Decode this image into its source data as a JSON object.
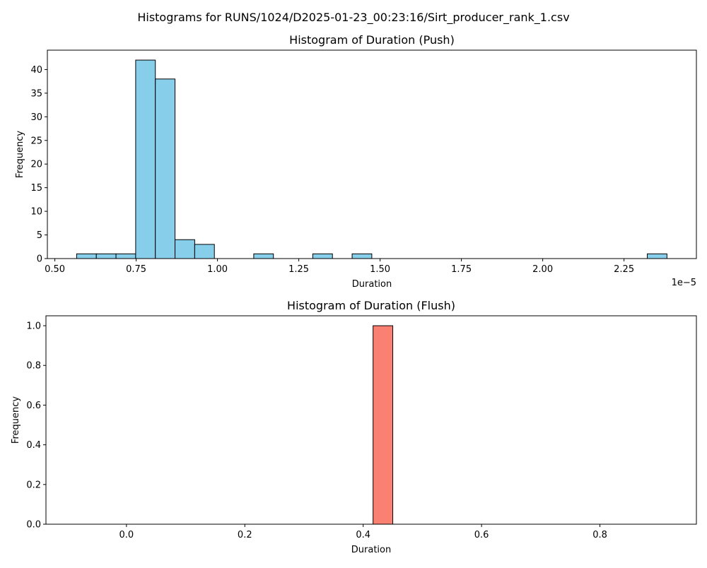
{
  "suptitle": "Histograms for RUNS/1024/D2025-01-23_00:23:16/Sirt_producer_rank_1.csv",
  "chart_data": [
    {
      "type": "bar",
      "title": "Histogram of Duration (Push)",
      "xlabel": "Duration",
      "ylabel": "Frequency",
      "offset_text": "1e−5",
      "bar_color": "#87ceeb",
      "edge_color": "#000000",
      "bin_width": 0.0605,
      "bin_starts": [
        0.567,
        0.6275,
        0.688,
        0.7485,
        0.809,
        0.8695,
        0.93,
        1.1115,
        1.293,
        1.414,
        2.3215
      ],
      "values": [
        1,
        1,
        1,
        42,
        38,
        4,
        3,
        1,
        1,
        1,
        1
      ],
      "xlim": [
        0.477,
        2.4725
      ],
      "ylim": [
        0,
        44.1
      ],
      "x_ticks": [
        0.5,
        0.75,
        1.0,
        1.25,
        1.5,
        1.75,
        2.0,
        2.25
      ],
      "x_tick_labels": [
        "0.50",
        "0.75",
        "1.00",
        "1.25",
        "1.50",
        "1.75",
        "2.00",
        "2.25"
      ],
      "y_ticks": [
        0,
        5,
        10,
        15,
        20,
        25,
        30,
        35,
        40
      ],
      "y_tick_labels": [
        "0",
        "5",
        "10",
        "15",
        "20",
        "25",
        "30",
        "35",
        "40"
      ],
      "baseline": [
        0.567,
        2.382
      ]
    },
    {
      "type": "bar",
      "title": "Histogram of Duration (Flush)",
      "xlabel": "Duration",
      "ylabel": "Frequency",
      "bar_color": "#fa8072",
      "edge_color": "#000000",
      "bin_width": 0.0333,
      "bin_starts": [
        0.4167
      ],
      "values": [
        1
      ],
      "xlim": [
        -0.136,
        0.963
      ],
      "ylim": [
        0,
        1.05
      ],
      "x_ticks": [
        0.0,
        0.2,
        0.4,
        0.6,
        0.8
      ],
      "x_tick_labels": [
        "0.0",
        "0.2",
        "0.4",
        "0.6",
        "0.8"
      ],
      "y_ticks": [
        0.0,
        0.2,
        0.4,
        0.6,
        0.8,
        1.0
      ],
      "y_tick_labels": [
        "0.0",
        "0.2",
        "0.4",
        "0.6",
        "0.8",
        "1.0"
      ],
      "baseline": [
        -0.0833,
        0.9167
      ]
    }
  ]
}
